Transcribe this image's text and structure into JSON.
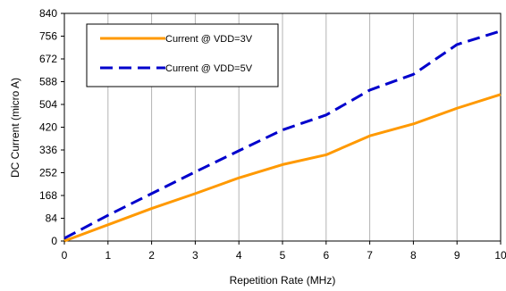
{
  "chart_data": {
    "type": "line",
    "xlabel": "Repetition Rate (MHz)",
    "ylabel": "DC Current (micro A)",
    "xlim": [
      0,
      10
    ],
    "ylim": [
      0,
      840
    ],
    "x_ticks": [
      "0",
      "1",
      "2",
      "3",
      "4",
      "5",
      "6",
      "7",
      "8",
      "9",
      "10"
    ],
    "y_ticks": [
      "0",
      "84",
      "168",
      "252",
      "336",
      "420",
      "504",
      "588",
      "672",
      "756",
      "840"
    ],
    "grid": "vertical",
    "legend": "top-left",
    "x": [
      0,
      1,
      2,
      3,
      4,
      5,
      6,
      7,
      8,
      9,
      10
    ],
    "series": [
      {
        "name": "Current @ VDD=3V",
        "color": "#ff9900",
        "style": "solid",
        "values": [
          0,
          60,
          120,
          175,
          233,
          282,
          318,
          388,
          432,
          490,
          541
        ]
      },
      {
        "name": "Current @ VDD=5V",
        "color": "#0000cc",
        "style": "dashed",
        "values": [
          10,
          95,
          175,
          255,
          333,
          410,
          465,
          557,
          615,
          725,
          775
        ]
      }
    ]
  }
}
